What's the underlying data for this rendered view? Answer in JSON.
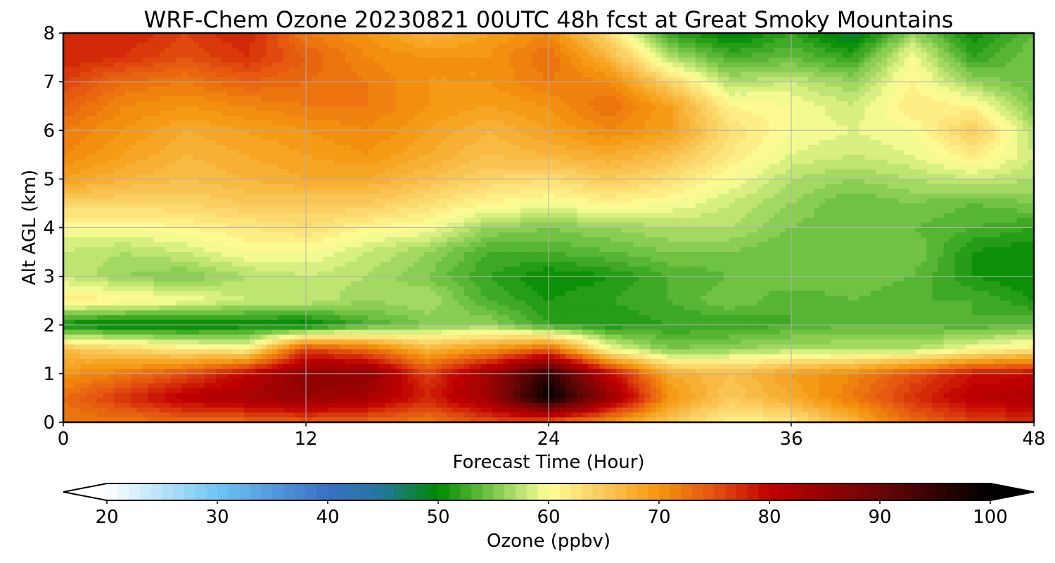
{
  "chart_data": {
    "type": "heatmap",
    "title": "WRF-Chem Ozone  20230821 00UTC 48h fcst at Great Smoky Mountains",
    "xlabel": "Forecast Time (Hour)",
    "ylabel": "Alt AGL (km)",
    "xlim": [
      0,
      48
    ],
    "ylim": [
      0,
      8
    ],
    "x_ticks": [
      "0",
      "12",
      "24",
      "36",
      "48"
    ],
    "y_ticks": [
      "0",
      "1",
      "2",
      "3",
      "4",
      "5",
      "6",
      "7",
      "8"
    ],
    "grid": true,
    "x": [
      0,
      3,
      6,
      9,
      12,
      15,
      18,
      21,
      24,
      27,
      30,
      33,
      36,
      39,
      42,
      45,
      48
    ],
    "y": [
      0,
      0.5,
      1,
      1.5,
      2,
      2.5,
      3,
      3.5,
      4,
      4.5,
      5,
      5.5,
      6,
      6.5,
      7,
      7.5,
      8
    ],
    "z": [
      [
        72,
        72,
        73,
        73,
        74,
        73,
        72,
        75,
        74,
        70,
        65,
        61,
        62,
        67,
        73,
        76,
        77
      ],
      [
        73,
        77,
        81,
        83,
        85,
        83,
        78,
        84,
        100,
        85,
        70,
        65,
        68,
        72,
        77,
        81,
        82
      ],
      [
        70,
        72,
        75,
        80,
        86,
        86,
        76,
        84,
        96,
        80,
        68,
        66,
        69,
        71,
        75,
        79,
        80
      ],
      [
        66,
        64,
        62,
        61,
        76,
        73,
        67,
        70,
        74,
        60,
        55,
        56,
        57,
        57,
        57,
        60,
        62
      ],
      [
        50,
        49,
        49,
        50,
        49,
        53,
        55,
        56,
        52,
        51,
        52,
        52,
        53,
        54,
        54,
        53,
        54
      ],
      [
        62,
        61,
        60,
        58,
        58,
        56,
        57,
        53,
        51,
        52,
        53,
        55,
        53,
        54,
        53,
        53,
        51
      ],
      [
        58,
        56,
        55,
        57,
        58,
        57,
        55,
        52,
        50,
        51,
        53,
        54,
        55,
        55,
        54,
        51,
        50
      ],
      [
        58,
        57,
        58,
        60,
        60,
        58,
        56,
        53,
        53,
        54,
        55,
        55,
        54,
        55,
        55,
        51,
        50
      ],
      [
        60,
        60,
        61,
        62,
        63,
        61,
        60,
        56,
        55,
        56,
        57,
        57,
        55,
        54,
        54,
        53,
        52
      ],
      [
        64,
        64,
        64,
        65,
        65,
        65,
        63,
        61,
        60,
        61,
        60,
        58,
        56,
        54,
        55,
        54,
        55
      ],
      [
        69,
        67,
        66,
        67,
        68,
        68,
        66,
        64,
        63,
        65,
        63,
        60,
        57,
        56,
        57,
        58,
        57
      ],
      [
        71,
        69,
        67,
        68,
        69,
        70,
        68,
        66,
        67,
        68,
        66,
        62,
        59,
        58,
        59,
        62,
        58
      ],
      [
        72,
        70,
        68,
        69,
        70,
        71,
        69,
        67,
        69,
        71,
        69,
        63,
        60,
        59,
        60,
        65,
        57
      ],
      [
        74,
        71,
        70,
        71,
        72,
        72,
        70,
        69,
        70,
        73,
        69,
        61,
        60,
        58,
        62,
        61,
        55
      ],
      [
        76,
        73,
        72,
        74,
        73,
        72,
        70,
        70,
        72,
        71,
        64,
        57,
        58,
        56,
        61,
        56,
        54
      ],
      [
        78,
        77,
        75,
        77,
        74,
        71,
        70,
        70,
        73,
        67,
        57,
        53,
        54,
        52,
        60,
        52,
        55
      ],
      [
        77,
        78,
        76,
        78,
        72,
        70,
        67,
        69,
        71,
        63,
        52,
        49,
        52,
        48,
        56,
        50,
        54
      ]
    ],
    "colorbar": {
      "label": "Ozone  (ppbv)",
      "min": 20,
      "max": 100,
      "step": 1,
      "ticks": [
        "20",
        "30",
        "40",
        "50",
        "60",
        "70",
        "80",
        "90",
        "100"
      ],
      "extend": "both",
      "colors": [
        {
          "v": 20,
          "c": "#ffffff"
        },
        {
          "v": 30,
          "c": "#6ec5f2"
        },
        {
          "v": 40,
          "c": "#3a6fc4"
        },
        {
          "v": 45,
          "c": "#22789a"
        },
        {
          "v": 50,
          "c": "#008a00"
        },
        {
          "v": 55,
          "c": "#7cc84a"
        },
        {
          "v": 60,
          "c": "#ffff99"
        },
        {
          "v": 65,
          "c": "#f9c95a"
        },
        {
          "v": 70,
          "c": "#f5960e"
        },
        {
          "v": 75,
          "c": "#e35210"
        },
        {
          "v": 80,
          "c": "#c00000"
        },
        {
          "v": 90,
          "c": "#6a0606"
        },
        {
          "v": 100,
          "c": "#000000"
        }
      ]
    }
  }
}
